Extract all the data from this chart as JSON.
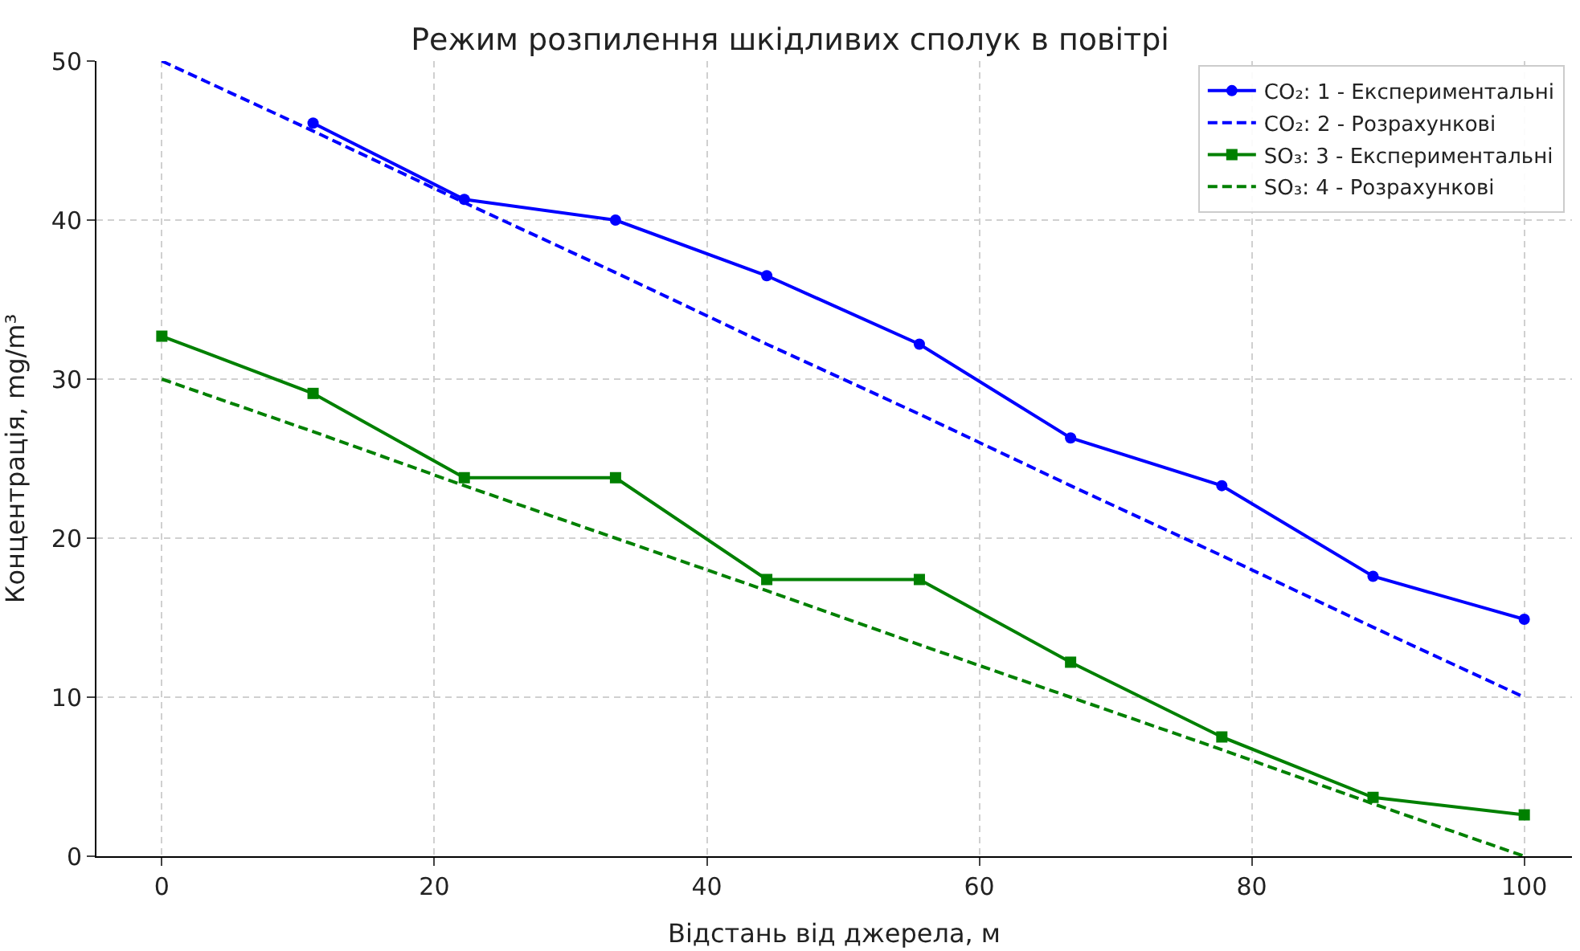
{
  "chart_data": {
    "type": "line",
    "title": "Режим розпилення шкідливих сполук в повітрі",
    "xlabel": "Відстань від джерела, м",
    "ylabel": "Концентрація, mg/m³",
    "x": [
      0,
      11.1,
      22.2,
      33.3,
      44.4,
      55.6,
      66.7,
      77.8,
      88.9,
      100
    ],
    "series": [
      {
        "name": "CO₂: 1 - Експериментальні",
        "color": "#0000ff",
        "marker": "circle",
        "line_style": "solid",
        "values": [
          null,
          46.1,
          41.3,
          40.0,
          36.5,
          32.2,
          26.3,
          23.3,
          17.6,
          14.9
        ]
      },
      {
        "name": "CO₂: 2 - Розрахункові",
        "color": "#0000ff",
        "marker": "none",
        "line_style": "dashed",
        "values": [
          50,
          45.6,
          41.1,
          36.7,
          32.2,
          27.8,
          23.3,
          18.9,
          14.4,
          10
        ]
      },
      {
        "name": "SO₃: 3 - Експериментальні",
        "color": "#008000",
        "marker": "square",
        "line_style": "solid",
        "values": [
          32.7,
          29.1,
          23.8,
          23.8,
          17.4,
          17.4,
          12.2,
          7.5,
          3.7,
          2.6
        ]
      },
      {
        "name": "SO₃: 4 - Розрахункові",
        "color": "#008000",
        "marker": "none",
        "line_style": "dashed",
        "values": [
          30,
          26.7,
          23.3,
          20,
          16.7,
          13.3,
          10,
          6.7,
          3.3,
          0
        ]
      }
    ],
    "xlim": [
      -4.8,
      103.5
    ],
    "xticks": [
      0,
      20,
      40,
      60,
      80,
      100
    ],
    "ylim": [
      0,
      50
    ],
    "yticks": [
      0,
      10,
      20,
      30,
      40,
      50
    ],
    "grid": true,
    "legend": "top right"
  }
}
